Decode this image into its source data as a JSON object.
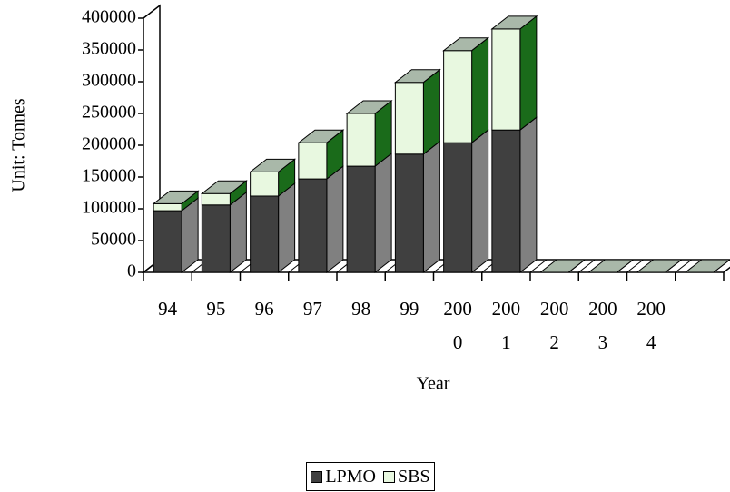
{
  "chart_data": {
    "type": "bar",
    "stacked": true,
    "y_label": "Unit: Tonnes",
    "x_label": "Year",
    "categories": [
      "94",
      "95",
      "96",
      "97",
      "98",
      "99",
      "2000",
      "2001",
      "2002",
      "2003",
      "2004",
      null
    ],
    "series": [
      {
        "name": "LPMO",
        "color": "#404040",
        "side_color": "#808080",
        "values": [
          97000,
          106000,
          120000,
          147000,
          167000,
          186000,
          204000,
          224000,
          0,
          0,
          0,
          0
        ]
      },
      {
        "name": "SBS",
        "color": "#e8f8e0",
        "side_color": "#1a6b1a",
        "values": [
          11000,
          18000,
          38000,
          57000,
          83000,
          113000,
          145000,
          159000,
          0,
          0,
          0,
          0
        ]
      }
    ],
    "top_color": "#a9b8a9",
    "ylim": [
      0,
      400000
    ],
    "yticks": [
      0,
      50000,
      100000,
      150000,
      200000,
      250000,
      300000,
      350000,
      400000
    ],
    "legend": "bottom"
  }
}
